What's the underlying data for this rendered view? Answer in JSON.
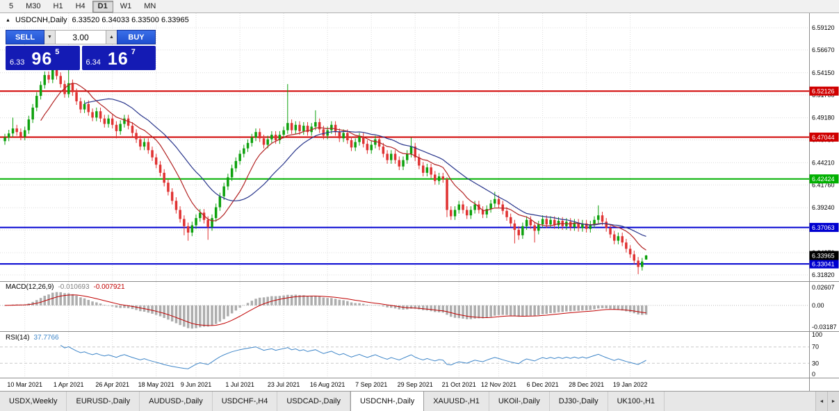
{
  "toolbar": {
    "periods": [
      {
        "label": "5",
        "active": false
      },
      {
        "label": "M30",
        "active": false
      },
      {
        "label": "H1",
        "active": false
      },
      {
        "label": "H4",
        "active": false
      },
      {
        "label": "D1",
        "active": true
      },
      {
        "label": "W1",
        "active": false
      },
      {
        "label": "MN",
        "active": false
      }
    ]
  },
  "chart_header": {
    "collapse_icon": "▲",
    "symbol_label": "USDCNH,Daily",
    "ohlc_text": "6.33520 6.34033 6.33500 6.33965"
  },
  "trade_panel": {
    "sell_label": "SELL",
    "buy_label": "BUY",
    "volume": "3.00",
    "spinner_down": "▼",
    "spinner_up": "▲",
    "sell_price": {
      "small": "6.33",
      "big": "96",
      "sup": "5"
    },
    "buy_price": {
      "small": "6.34",
      "big": "16",
      "sup": "7"
    }
  },
  "chart_data": {
    "type": "candlestick",
    "symbol": "USDCNH",
    "period": "Daily",
    "ylim": [
      6.312,
      6.607
    ],
    "price_ticks": [
      {
        "v": 6.5912,
        "label": "6.59120"
      },
      {
        "v": 6.5667,
        "label": "6.56670"
      },
      {
        "v": 6.5415,
        "label": "6.54150"
      },
      {
        "v": 6.517,
        "label": "6.51700"
      },
      {
        "v": 6.4918,
        "label": "6.49180"
      },
      {
        "v": 6.4673,
        "label": "6.46730"
      },
      {
        "v": 6.4421,
        "label": "6.44210"
      },
      {
        "v": 6.4176,
        "label": "6.41760"
      },
      {
        "v": 6.3924,
        "label": "6.39240"
      },
      {
        "v": 6.3679,
        "label": "6.36790"
      },
      {
        "v": 6.3427,
        "label": "6.34270"
      },
      {
        "v": 6.3182,
        "label": "6.31820"
      }
    ],
    "date_ticks": [
      {
        "i": 5,
        "label": "10 Mar 2021"
      },
      {
        "i": 16,
        "label": "1 Apr 2021"
      },
      {
        "i": 27,
        "label": "26 Apr 2021"
      },
      {
        "i": 38,
        "label": "18 May 2021"
      },
      {
        "i": 48,
        "label": "9 Jun 2021"
      },
      {
        "i": 59,
        "label": "1 Jul 2021"
      },
      {
        "i": 70,
        "label": "23 Jul 2021"
      },
      {
        "i": 81,
        "label": "16 Aug 2021"
      },
      {
        "i": 92,
        "label": "7 Sep 2021"
      },
      {
        "i": 103,
        "label": "29 Sep 2021"
      },
      {
        "i": 114,
        "label": "21 Oct 2021"
      },
      {
        "i": 124,
        "label": "12 Nov 2021"
      },
      {
        "i": 135,
        "label": "6 Dec 2021"
      },
      {
        "i": 146,
        "label": "28 Dec 2021"
      },
      {
        "i": 157,
        "label": "19 Jan 2022"
      }
    ],
    "level_lines": [
      {
        "value": 6.52126,
        "label": "6.52126",
        "color": "#D00000"
      },
      {
        "value": 6.47044,
        "label": "6.47044",
        "color": "#D00000"
      },
      {
        "value": 6.42424,
        "label": "6.42424",
        "color": "#00B000"
      },
      {
        "value": 6.37063,
        "label": "6.37063",
        "color": "#0000D0"
      },
      {
        "value": 6.33041,
        "label": "6.33041",
        "color": "#0000D0"
      }
    ],
    "current_price": {
      "value": 6.33965,
      "label": "6.33965",
      "color": "#000000"
    },
    "moving_averages": [
      {
        "period": 10,
        "color": "#B22222"
      },
      {
        "period": 21,
        "color": "#27348B"
      }
    ],
    "indicators": {
      "macd": {
        "name": "MACD(12,26,9)",
        "fast": 12,
        "slow": 26,
        "signal": 9,
        "main_value": "-0.010693",
        "signal_value": "-0.007921",
        "axis_labels": [
          "0.02607",
          "0.00",
          "-0.03187"
        ],
        "range": [
          -0.03187,
          0.02607
        ],
        "hist_color": "#ADADAD",
        "signal_color": "#C00000"
      },
      "rsi": {
        "name": "RSI(14)",
        "period": 14,
        "value": "37.7766",
        "axis_labels": [
          "100",
          "70",
          "30",
          "0"
        ],
        "levels": [
          70,
          30
        ],
        "color": "#3D85C8"
      }
    },
    "colors": {
      "up": "#0DA10D",
      "down": "#E03232",
      "grid": "#DCDCDC"
    },
    "candles": [
      [
        6.466,
        6.474,
        6.462,
        6.47
      ],
      [
        6.47,
        6.4785,
        6.466,
        6.4745
      ],
      [
        6.4745,
        6.492,
        6.4705,
        6.48
      ],
      [
        6.48,
        6.484,
        6.472,
        6.476
      ],
      [
        6.476,
        6.48,
        6.467,
        6.471
      ],
      [
        6.471,
        6.482,
        6.467,
        6.478
      ],
      [
        6.478,
        6.494,
        6.474,
        6.49
      ],
      [
        6.49,
        6.507,
        6.486,
        6.503
      ],
      [
        6.503,
        6.52,
        6.499,
        6.516
      ],
      [
        6.516,
        6.532,
        6.512,
        6.528
      ],
      [
        6.528,
        6.543,
        6.524,
        6.539
      ],
      [
        6.539,
        6.543,
        6.53,
        6.534
      ],
      [
        6.534,
        6.556,
        6.53,
        6.547
      ],
      [
        6.547,
        6.551,
        6.534,
        6.538
      ],
      [
        6.538,
        6.542,
        6.525,
        6.529
      ],
      [
        6.529,
        6.533,
        6.514,
        6.518
      ],
      [
        6.518,
        6.551,
        6.514,
        6.53
      ],
      [
        6.53,
        6.534,
        6.516,
        6.52
      ],
      [
        6.52,
        6.524,
        6.506,
        6.51
      ],
      [
        6.51,
        6.514,
        6.497,
        6.501
      ],
      [
        6.501,
        6.511,
        6.497,
        6.507
      ],
      [
        6.507,
        6.511,
        6.494,
        6.498
      ],
      [
        6.498,
        6.502,
        6.488,
        6.492
      ],
      [
        6.492,
        6.503,
        6.488,
        6.499
      ],
      [
        6.499,
        6.503,
        6.487,
        6.491
      ],
      [
        6.491,
        6.495,
        6.481,
        6.485
      ],
      [
        6.485,
        6.495,
        6.481,
        6.491
      ],
      [
        6.491,
        6.495,
        6.48,
        6.484
      ],
      [
        6.484,
        6.488,
        6.469,
        6.477
      ],
      [
        6.477,
        6.489,
        6.473,
        6.485
      ],
      [
        6.485,
        6.495,
        6.481,
        6.491
      ],
      [
        6.491,
        6.495,
        6.479,
        6.483
      ],
      [
        6.483,
        6.487,
        6.471,
        6.475
      ],
      [
        6.475,
        6.479,
        6.464,
        6.468
      ],
      [
        6.468,
        6.472,
        6.456,
        6.46
      ],
      [
        6.46,
        6.469,
        6.456,
        6.465
      ],
      [
        6.465,
        6.469,
        6.452,
        6.456
      ],
      [
        6.456,
        6.46,
        6.444,
        6.448
      ],
      [
        6.448,
        6.452,
        6.436,
        6.44
      ],
      [
        6.44,
        6.444,
        6.427,
        6.431
      ],
      [
        6.431,
        6.435,
        6.416,
        6.42
      ],
      [
        6.42,
        6.424,
        6.406,
        6.41
      ],
      [
        6.41,
        6.414,
        6.396,
        6.4
      ],
      [
        6.4,
        6.404,
        6.386,
        6.39
      ],
      [
        6.39,
        6.394,
        6.376,
        6.38
      ],
      [
        6.38,
        6.384,
        6.362,
        6.372
      ],
      [
        6.372,
        6.376,
        6.356,
        6.365
      ],
      [
        6.365,
        6.377,
        6.361,
        6.373
      ],
      [
        6.373,
        6.385,
        6.369,
        6.381
      ],
      [
        6.381,
        6.391,
        6.377,
        6.387
      ],
      [
        6.387,
        6.391,
        6.375,
        6.379
      ],
      [
        6.379,
        6.383,
        6.357,
        6.371
      ],
      [
        6.371,
        6.385,
        6.367,
        6.381
      ],
      [
        6.381,
        6.397,
        6.377,
        6.393
      ],
      [
        6.393,
        6.409,
        6.389,
        6.405
      ],
      [
        6.405,
        6.42,
        6.401,
        6.416
      ],
      [
        6.416,
        6.43,
        6.412,
        6.426
      ],
      [
        6.426,
        6.44,
        6.422,
        6.436
      ],
      [
        6.436,
        6.448,
        6.432,
        6.444
      ],
      [
        6.444,
        6.456,
        6.44,
        6.452
      ],
      [
        6.452,
        6.462,
        6.448,
        6.458
      ],
      [
        6.458,
        6.468,
        6.454,
        6.464
      ],
      [
        6.464,
        6.474,
        6.46,
        6.47
      ],
      [
        6.47,
        6.48,
        6.466,
        6.476
      ],
      [
        6.476,
        6.48,
        6.465,
        6.469
      ],
      [
        6.469,
        6.473,
        6.458,
        6.462
      ],
      [
        6.462,
        6.472,
        6.458,
        6.468
      ],
      [
        6.468,
        6.477,
        6.464,
        6.473
      ],
      [
        6.473,
        6.477,
        6.463,
        6.467
      ],
      [
        6.467,
        6.477,
        6.463,
        6.473
      ],
      [
        6.473,
        6.482,
        6.469,
        6.478
      ],
      [
        6.478,
        6.529,
        6.474,
        6.486
      ],
      [
        6.486,
        6.49,
        6.474,
        6.478
      ],
      [
        6.478,
        6.488,
        6.474,
        6.484
      ],
      [
        6.484,
        6.488,
        6.473,
        6.477
      ],
      [
        6.477,
        6.487,
        6.473,
        6.483
      ],
      [
        6.483,
        6.487,
        6.472,
        6.476
      ],
      [
        6.476,
        6.486,
        6.472,
        6.482
      ],
      [
        6.482,
        6.5,
        6.478,
        6.487
      ],
      [
        6.487,
        6.491,
        6.475,
        6.479
      ],
      [
        6.479,
        6.483,
        6.468,
        6.472
      ],
      [
        6.472,
        6.482,
        6.468,
        6.478
      ],
      [
        6.478,
        6.488,
        6.474,
        6.484
      ],
      [
        6.484,
        6.488,
        6.472,
        6.476
      ],
      [
        6.476,
        6.48,
        6.465,
        6.469
      ],
      [
        6.469,
        6.479,
        6.465,
        6.475
      ],
      [
        6.475,
        6.479,
        6.463,
        6.467
      ],
      [
        6.467,
        6.471,
        6.455,
        6.459
      ],
      [
        6.459,
        6.469,
        6.455,
        6.465
      ],
      [
        6.465,
        6.475,
        6.461,
        6.471
      ],
      [
        6.471,
        6.475,
        6.459,
        6.463
      ],
      [
        6.463,
        6.467,
        6.452,
        6.456
      ],
      [
        6.456,
        6.466,
        6.452,
        6.462
      ],
      [
        6.462,
        6.472,
        6.458,
        6.468
      ],
      [
        6.468,
        6.472,
        6.456,
        6.46
      ],
      [
        6.46,
        6.464,
        6.448,
        6.452
      ],
      [
        6.452,
        6.456,
        6.441,
        6.445
      ],
      [
        6.445,
        6.456,
        6.441,
        6.452
      ],
      [
        6.452,
        6.456,
        6.441,
        6.445
      ],
      [
        6.445,
        6.449,
        6.434,
        6.438
      ],
      [
        6.438,
        6.449,
        6.434,
        6.445
      ],
      [
        6.445,
        6.456,
        6.441,
        6.452
      ],
      [
        6.452,
        6.47,
        6.448,
        6.46
      ],
      [
        6.46,
        6.464,
        6.444,
        6.448
      ],
      [
        6.448,
        6.452,
        6.435,
        6.439
      ],
      [
        6.439,
        6.443,
        6.427,
        6.431
      ],
      [
        6.431,
        6.441,
        6.427,
        6.437
      ],
      [
        6.437,
        6.441,
        6.425,
        6.429
      ],
      [
        6.429,
        6.433,
        6.418,
        6.422
      ],
      [
        6.422,
        6.431,
        6.418,
        6.427
      ],
      [
        6.427,
        6.431,
        6.42,
        6.424
      ],
      [
        6.424,
        6.426,
        6.382,
        6.39
      ],
      [
        6.39,
        6.394,
        6.379,
        6.383
      ],
      [
        6.383,
        6.394,
        6.379,
        6.39
      ],
      [
        6.39,
        6.4,
        6.386,
        6.396
      ],
      [
        6.396,
        6.4,
        6.386,
        6.39
      ],
      [
        6.39,
        6.394,
        6.38,
        6.384
      ],
      [
        6.384,
        6.394,
        6.38,
        6.39
      ],
      [
        6.39,
        6.4,
        6.386,
        6.396
      ],
      [
        6.396,
        6.4,
        6.386,
        6.39
      ],
      [
        6.39,
        6.394,
        6.381,
        6.385
      ],
      [
        6.385,
        6.395,
        6.381,
        6.391
      ],
      [
        6.391,
        6.401,
        6.387,
        6.397
      ],
      [
        6.397,
        6.41,
        6.393,
        6.402
      ],
      [
        6.402,
        6.406,
        6.392,
        6.396
      ],
      [
        6.396,
        6.4,
        6.385,
        6.389
      ],
      [
        6.389,
        6.393,
        6.378,
        6.382
      ],
      [
        6.382,
        6.386,
        6.371,
        6.375
      ],
      [
        6.375,
        6.379,
        6.353,
        6.368
      ],
      [
        6.368,
        6.372,
        6.357,
        6.362
      ],
      [
        6.362,
        6.376,
        6.358,
        6.372
      ],
      [
        6.372,
        6.383,
        6.368,
        6.379
      ],
      [
        6.379,
        6.383,
        6.369,
        6.373
      ],
      [
        6.373,
        6.377,
        6.354,
        6.367
      ],
      [
        6.367,
        6.378,
        6.363,
        6.374
      ],
      [
        6.374,
        6.384,
        6.37,
        6.38
      ],
      [
        6.38,
        6.384,
        6.37,
        6.374
      ],
      [
        6.374,
        6.383,
        6.37,
        6.379
      ],
      [
        6.379,
        6.383,
        6.369,
        6.373
      ],
      [
        6.373,
        6.382,
        6.369,
        6.378
      ],
      [
        6.378,
        6.382,
        6.368,
        6.372
      ],
      [
        6.372,
        6.381,
        6.368,
        6.377
      ],
      [
        6.377,
        6.381,
        6.367,
        6.371
      ],
      [
        6.371,
        6.38,
        6.367,
        6.376
      ],
      [
        6.376,
        6.38,
        6.366,
        6.37
      ],
      [
        6.37,
        6.379,
        6.366,
        6.375
      ],
      [
        6.375,
        6.379,
        6.365,
        6.369
      ],
      [
        6.369,
        6.378,
        6.365,
        6.374
      ],
      [
        6.374,
        6.383,
        6.37,
        6.379
      ],
      [
        6.379,
        6.395,
        6.375,
        6.384
      ],
      [
        6.384,
        6.388,
        6.373,
        6.377
      ],
      [
        6.377,
        6.381,
        6.366,
        6.37
      ],
      [
        6.37,
        6.374,
        6.359,
        6.363
      ],
      [
        6.363,
        6.367,
        6.352,
        6.356
      ],
      [
        6.356,
        6.365,
        6.352,
        6.361
      ],
      [
        6.361,
        6.365,
        6.35,
        6.354
      ],
      [
        6.354,
        6.358,
        6.343,
        6.347
      ],
      [
        6.347,
        6.351,
        6.337,
        6.341
      ],
      [
        6.341,
        6.345,
        6.33,
        6.334
      ],
      [
        6.334,
        6.338,
        6.319,
        6.327
      ],
      [
        6.327,
        6.337,
        6.323,
        6.333
      ],
      [
        6.3352,
        6.3403,
        6.335,
        6.3397
      ]
    ]
  },
  "tabs": {
    "items": [
      {
        "label": "USDX,Weekly",
        "active": false
      },
      {
        "label": "EURUSD-,Daily",
        "active": false
      },
      {
        "label": "AUDUSD-,Daily",
        "active": false
      },
      {
        "label": "USDCHF-,H4",
        "active": false
      },
      {
        "label": "USDCAD-,Daily",
        "active": false
      },
      {
        "label": "USDCNH-,Daily",
        "active": true
      },
      {
        "label": "XAUUSD-,H1",
        "active": false
      },
      {
        "label": "UKOil-,Daily",
        "active": false
      },
      {
        "label": "DJ30-,Daily",
        "active": false
      },
      {
        "label": "UK100-,H1",
        "active": false
      }
    ],
    "scroll_left": "◄",
    "scroll_right": "►"
  }
}
